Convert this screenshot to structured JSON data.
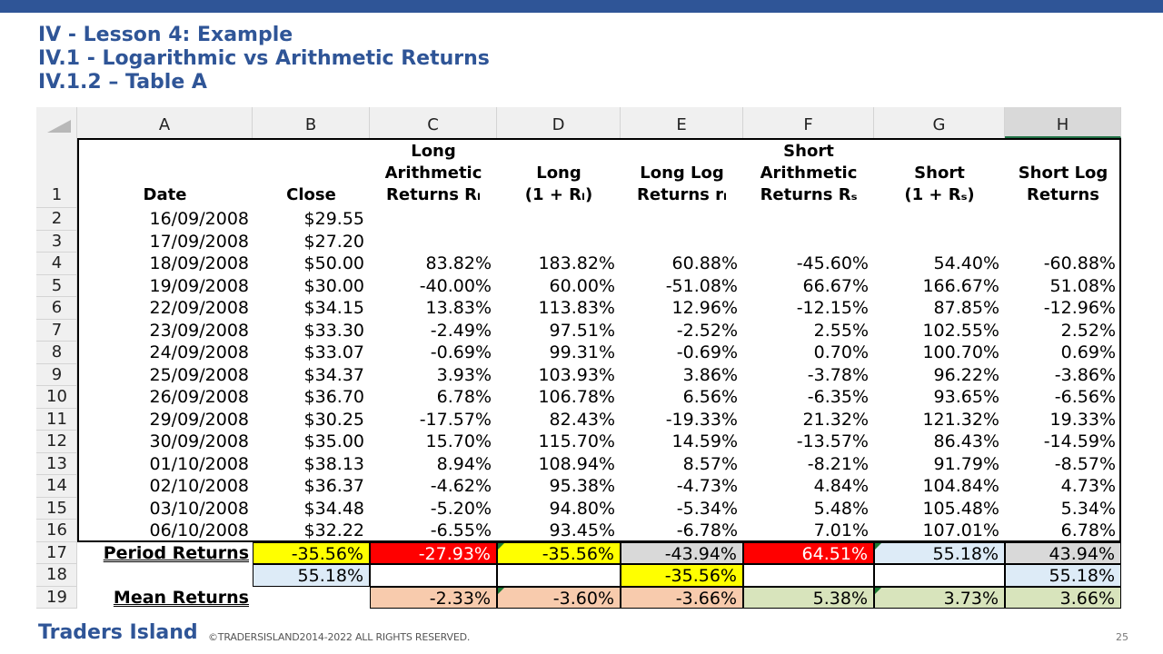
{
  "titles": [
    "IV -  Lesson 4: Example",
    "IV.1 - Logarithmic vs Arithmetic Returns",
    "IV.1.2 – Table A"
  ],
  "sheet": {
    "columns": [
      "A",
      "B",
      "C",
      "D",
      "E",
      "F",
      "G",
      "H"
    ],
    "header_row_number": "1",
    "headers": {
      "A": [
        "Date"
      ],
      "B": [
        "Close"
      ],
      "C": [
        "Long",
        "Arithmetic",
        "Returns Rₗ"
      ],
      "D": [
        "Long",
        "(1 + Rₗ)"
      ],
      "E": [
        "Long Log",
        "Returns rₗ"
      ],
      "F": [
        "Short",
        "Arithmetic",
        "Returns Rₛ"
      ],
      "G": [
        "Short",
        "(1 + Rₛ)"
      ],
      "H": [
        "Short Log",
        "Returns"
      ]
    },
    "rows": [
      {
        "n": "2",
        "date": "16/09/2008",
        "close": "$29.55",
        "c": "",
        "d": "",
        "e": "",
        "f": "",
        "g": "",
        "h": ""
      },
      {
        "n": "3",
        "date": "17/09/2008",
        "close": "$27.20",
        "c": "",
        "d": "",
        "e": "",
        "f": "",
        "g": "",
        "h": ""
      },
      {
        "n": "4",
        "date": "18/09/2008",
        "close": "$50.00",
        "c": "83.82%",
        "d": "183.82%",
        "e": "60.88%",
        "f": "-45.60%",
        "g": "54.40%",
        "h": "-60.88%"
      },
      {
        "n": "5",
        "date": "19/09/2008",
        "close": "$30.00",
        "c": "-40.00%",
        "d": "60.00%",
        "e": "-51.08%",
        "f": "66.67%",
        "g": "166.67%",
        "h": "51.08%"
      },
      {
        "n": "6",
        "date": "22/09/2008",
        "close": "$34.15",
        "c": "13.83%",
        "d": "113.83%",
        "e": "12.96%",
        "f": "-12.15%",
        "g": "87.85%",
        "h": "-12.96%"
      },
      {
        "n": "7",
        "date": "23/09/2008",
        "close": "$33.30",
        "c": "-2.49%",
        "d": "97.51%",
        "e": "-2.52%",
        "f": "2.55%",
        "g": "102.55%",
        "h": "2.52%"
      },
      {
        "n": "8",
        "date": "24/09/2008",
        "close": "$33.07",
        "c": "-0.69%",
        "d": "99.31%",
        "e": "-0.69%",
        "f": "0.70%",
        "g": "100.70%",
        "h": "0.69%"
      },
      {
        "n": "9",
        "date": "25/09/2008",
        "close": "$34.37",
        "c": "3.93%",
        "d": "103.93%",
        "e": "3.86%",
        "f": "-3.78%",
        "g": "96.22%",
        "h": "-3.86%"
      },
      {
        "n": "10",
        "date": "26/09/2008",
        "close": "$36.70",
        "c": "6.78%",
        "d": "106.78%",
        "e": "6.56%",
        "f": "-6.35%",
        "g": "93.65%",
        "h": "-6.56%"
      },
      {
        "n": "11",
        "date": "29/09/2008",
        "close": "$30.25",
        "c": "-17.57%",
        "d": "82.43%",
        "e": "-19.33%",
        "f": "21.32%",
        "g": "121.32%",
        "h": "19.33%"
      },
      {
        "n": "12",
        "date": "30/09/2008",
        "close": "$35.00",
        "c": "15.70%",
        "d": "115.70%",
        "e": "14.59%",
        "f": "-13.57%",
        "g": "86.43%",
        "h": "-14.59%"
      },
      {
        "n": "13",
        "date": "01/10/2008",
        "close": "$38.13",
        "c": "8.94%",
        "d": "108.94%",
        "e": "8.57%",
        "f": "-8.21%",
        "g": "91.79%",
        "h": "-8.57%"
      },
      {
        "n": "14",
        "date": "02/10/2008",
        "close": "$36.37",
        "c": "-4.62%",
        "d": "95.38%",
        "e": "-4.73%",
        "f": "4.84%",
        "g": "104.84%",
        "h": "4.73%"
      },
      {
        "n": "15",
        "date": "03/10/2008",
        "close": "$34.48",
        "c": "-5.20%",
        "d": "94.80%",
        "e": "-5.34%",
        "f": "5.48%",
        "g": "105.48%",
        "h": "5.34%"
      },
      {
        "n": "16",
        "date": "06/10/2008",
        "close": "$32.22",
        "c": "-6.55%",
        "d": "93.45%",
        "e": "-6.78%",
        "f": "7.01%",
        "g": "107.01%",
        "h": "6.78%"
      }
    ],
    "period_row": {
      "n": "17",
      "label": "Period Returns",
      "b": "-35.56%",
      "c": "-27.93%",
      "d": "-35.56%",
      "e": "-43.94%",
      "f": "64.51%",
      "g": "55.18%",
      "h": "43.94%"
    },
    "row18": {
      "n": "18",
      "b": "55.18%",
      "e": "-35.56%",
      "h": "55.18%"
    },
    "mean_row": {
      "n": "19",
      "label": "Mean Returns",
      "c": "-2.33%",
      "d": "-3.60%",
      "e": "-3.66%",
      "f": "5.38%",
      "g": "3.73%",
      "h": "3.66%"
    },
    "colors": {
      "yellow": "#ffff00",
      "red": "#ff0000",
      "grey": "#d9d9d9",
      "lightblue": "#ddebf7",
      "peach": "#f8cbad",
      "lightgreen": "#d8e4bc",
      "header_bg": "#f0f0f0",
      "brand": "#2f5597"
    }
  },
  "footer": {
    "brand": "Traders Island",
    "copyright": "©TRADERSISLAND2014-2022 ALL RIGHTS RESERVED.",
    "page": "25"
  }
}
